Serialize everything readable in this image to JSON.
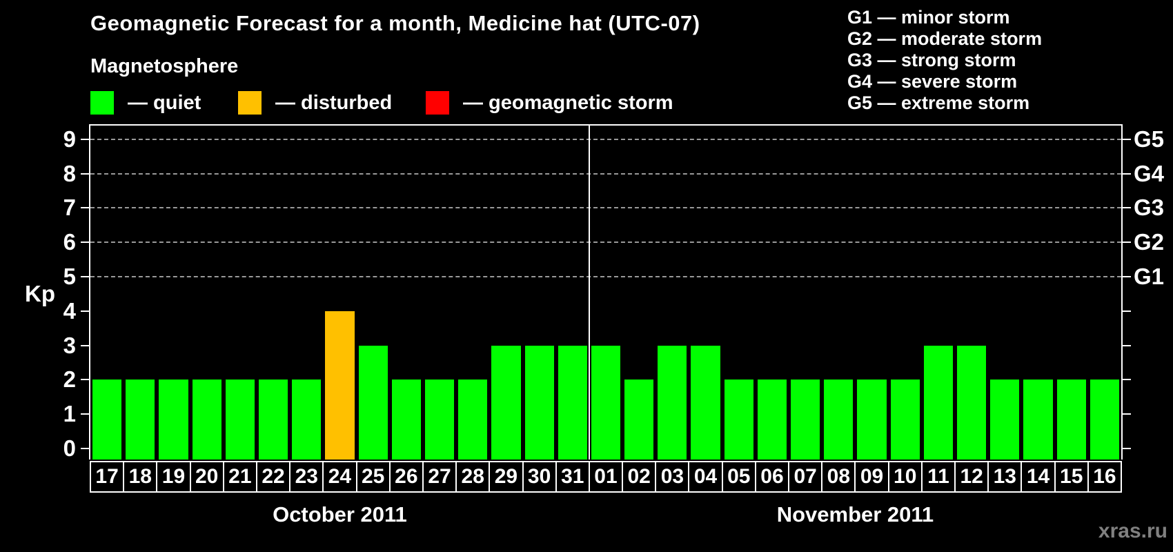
{
  "title": "Geomagnetic Forecast for a month, Medicine hat (UTC-07)",
  "subtitle": "Magnetosphere",
  "legend": {
    "items": [
      {
        "name": "quiet",
        "label": "— quiet",
        "color": "#00FF00"
      },
      {
        "name": "disturbed",
        "label": "— disturbed",
        "color": "#FFC000"
      },
      {
        "name": "storm",
        "label": "— geomagnetic storm",
        "color": "#FF0000"
      }
    ]
  },
  "g_legend": {
    "items": [
      {
        "label": "G1 — minor storm"
      },
      {
        "label": "G2 — moderate storm"
      },
      {
        "label": "G3 — strong storm"
      },
      {
        "label": "G4 — severe storm"
      },
      {
        "label": "G5 — extreme storm"
      }
    ]
  },
  "watermark": "xras.ru",
  "chart_data": {
    "type": "bar",
    "title": "Geomagnetic Forecast for a month, Medicine hat (UTC-07)",
    "ylabel": "Kp",
    "ylim": [
      0,
      9.6
    ],
    "y_ticks": [
      0,
      1,
      2,
      3,
      4,
      5,
      6,
      7,
      8,
      9
    ],
    "grid": "horizontal dashed gridlines at Kp 5,6,7,8,9 only",
    "legend_position": "top",
    "right_axis": [
      {
        "label": "G1",
        "kp": 5
      },
      {
        "label": "G2",
        "kp": 6
      },
      {
        "label": "G3",
        "kp": 7
      },
      {
        "label": "G4",
        "kp": 8
      },
      {
        "label": "G5",
        "kp": 9
      }
    ],
    "bar_colors": {
      "quiet": "#00FF00",
      "disturbed": "#FFC000",
      "storm": "#FF0000"
    },
    "groups": [
      {
        "month_label": "October 2011",
        "days": [
          "17",
          "18",
          "19",
          "20",
          "21",
          "22",
          "23",
          "24",
          "25",
          "26",
          "27",
          "28",
          "29",
          "30",
          "31"
        ],
        "values": [
          2,
          2,
          2,
          2,
          2,
          2,
          2,
          4,
          3,
          2,
          2,
          2,
          3,
          3,
          3
        ],
        "statuses": [
          "quiet",
          "quiet",
          "quiet",
          "quiet",
          "quiet",
          "quiet",
          "quiet",
          "disturbed",
          "quiet",
          "quiet",
          "quiet",
          "quiet",
          "quiet",
          "quiet",
          "quiet"
        ]
      },
      {
        "month_label": "November 2011",
        "days": [
          "01",
          "02",
          "03",
          "04",
          "05",
          "06",
          "07",
          "08",
          "09",
          "10",
          "11",
          "12",
          "13",
          "14",
          "15",
          "16"
        ],
        "values": [
          3,
          2,
          3,
          3,
          2,
          2,
          2,
          2,
          2,
          2,
          3,
          3,
          2,
          2,
          2,
          2
        ],
        "statuses": [
          "quiet",
          "quiet",
          "quiet",
          "quiet",
          "quiet",
          "quiet",
          "quiet",
          "quiet",
          "quiet",
          "quiet",
          "quiet",
          "quiet",
          "quiet",
          "quiet",
          "quiet",
          "quiet"
        ]
      }
    ]
  }
}
